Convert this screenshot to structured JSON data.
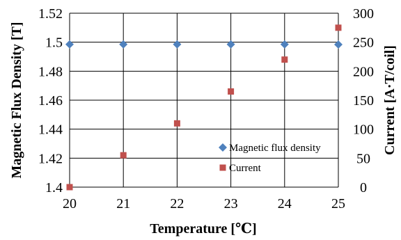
{
  "chart_data": {
    "type": "scatter",
    "xlabel": "Temperature [℃]",
    "ylabel_left": "Magnetic Flux Density [T]",
    "ylabel_right": "Current [A·T/coil]",
    "x_ticks": [
      "20",
      "21",
      "22",
      "23",
      "24",
      "25"
    ],
    "y_left_ticks": [
      "1.4",
      "1.42",
      "1.44",
      "1.46",
      "1.48",
      "1.5",
      "1.52"
    ],
    "y_right_ticks": [
      "0",
      "50",
      "100",
      "150",
      "200",
      "250",
      "300"
    ],
    "xlim": [
      20,
      25
    ],
    "ylim_left": [
      1.4,
      1.52
    ],
    "ylim_right": [
      0,
      300
    ],
    "grid": true,
    "legend_position": "lower-right",
    "series": [
      {
        "name": "Magnetic flux density",
        "axis": "left",
        "marker": "diamond",
        "color": "#4F81BD",
        "x": [
          20,
          21,
          22,
          23,
          24,
          25
        ],
        "y": [
          1.4985,
          1.4985,
          1.4985,
          1.4985,
          1.4985,
          1.4984
        ]
      },
      {
        "name": "Current",
        "axis": "right",
        "marker": "square",
        "color": "#C0504D",
        "x": [
          20,
          21,
          22,
          23,
          24,
          25
        ],
        "y": [
          0,
          55,
          110,
          165,
          220,
          275
        ]
      }
    ]
  }
}
